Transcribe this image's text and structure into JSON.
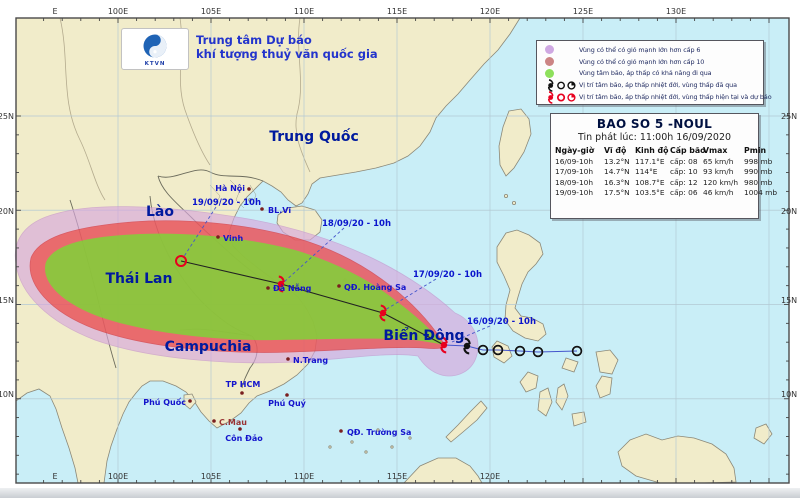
{
  "branding": {
    "logo_text": "KTVN",
    "org_line1": "Trung tâm Dự báo",
    "org_line2": "khí tượng thuỷ văn quốc gia"
  },
  "legend": {
    "items": [
      {
        "label": "Vùng có thể có gió mạnh lớn hơn cấp 6",
        "swatch": "purple-circle",
        "color": "#cfa8e2"
      },
      {
        "label": "Vùng có thể có gió mạnh lớn hơn cấp 10",
        "swatch": "red-circle",
        "color": "#cc8585"
      },
      {
        "label": "Vùng tâm bão, áp thấp có khả năng đi qua",
        "swatch": "green-circle",
        "color": "#8ee05c"
      },
      {
        "label": "Vị trí tâm bão, áp thấp nhiệt đới, vùng thấp đã qua",
        "swatch": "past-symbols",
        "color": "#111111"
      },
      {
        "label": "Vị trí tâm bão, áp thấp nhiệt đới, vùng thấp hiện tại và dự báo",
        "swatch": "forecast-symbols",
        "color": "#e8001e"
      }
    ]
  },
  "storm_panel": {
    "title": "BAO SO 5 -NOUL",
    "issued": "Tin phát lúc: 11:00h 16/09/2020",
    "columns": [
      "Ngày-giờ",
      "Vĩ độ",
      "Kinh độ",
      "Cấp bão",
      "Vmax",
      "Pmin"
    ],
    "rows": [
      [
        "16/09-10h",
        "13.2°N",
        "117.1°E",
        "cấp: 08",
        "65 km/h",
        "998 mb"
      ],
      [
        "17/09-10h",
        "14.7°N",
        "114°E",
        "cấp: 10",
        "93 km/h",
        "990 mb"
      ],
      [
        "18/09-10h",
        "16.3°N",
        "108.7°E",
        "cấp: 12",
        "120 km/h",
        "980 mb"
      ],
      [
        "19/09-10h",
        "17.5°N",
        "103.5°E",
        "cấp: 06",
        "46 km/h",
        "1004 mb"
      ]
    ]
  },
  "map": {
    "sea_label": "Biển Đông",
    "countries": [
      {
        "label": "Trung Quốc"
      },
      {
        "label": "Lào"
      },
      {
        "label": "Thái Lan"
      },
      {
        "label": "Campuchia"
      }
    ],
    "cities": [
      {
        "label": "Hà Nội"
      },
      {
        "label": "BL.Vĩ"
      },
      {
        "label": "Vinh"
      },
      {
        "label": "Đà Nẵng"
      },
      {
        "label": "QĐ. Hoàng Sa"
      },
      {
        "label": "N.Trang"
      },
      {
        "label": "TP HCM"
      },
      {
        "label": "Phú Quốc"
      },
      {
        "label": "Phú Quý"
      },
      {
        "label": "C.Mau"
      },
      {
        "label": "Côn Đảo"
      },
      {
        "label": "QĐ. Trường Sa"
      }
    ],
    "track_labels": [
      "16/09/20 - 10h",
      "17/09/20 - 10h",
      "18/09/20 - 10h",
      "19/09/20 - 10h"
    ],
    "axis": {
      "top": [
        "E",
        "100E",
        "105E",
        "110E",
        "115E",
        "120E",
        "125E",
        "130E"
      ],
      "bottom": [
        "E",
        "100E",
        "105E",
        "110E",
        "115E",
        "120E"
      ],
      "left": [
        "25N",
        "20N",
        "15N",
        "10N"
      ],
      "right": [
        "25N",
        "20N",
        "15N",
        "10N"
      ]
    },
    "colors": {
      "sea": "#c9eef7",
      "land": "#f1ecca",
      "cone_wind6": "#d8a8dd",
      "cone_wind10": "#f0392e",
      "cone_center": "#76dd33",
      "past_symbol": "#111111",
      "forecast_symbol": "#e8001e"
    }
  }
}
